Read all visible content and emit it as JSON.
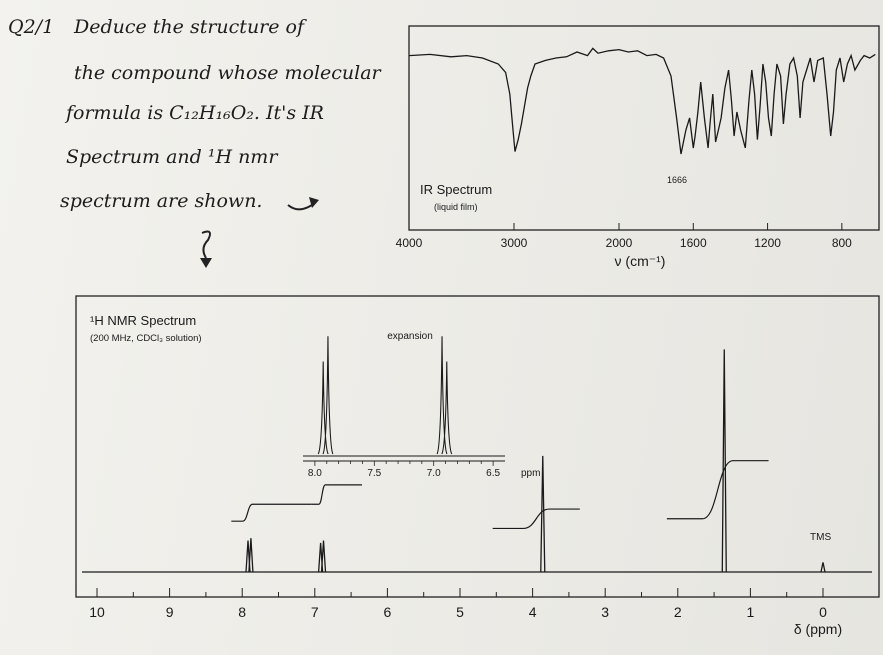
{
  "question": {
    "number": "Q2/1",
    "lines": [
      "Deduce the structure of",
      "the compound whose molecular",
      "formula is C₁₂H₁₆O₂. It's IR",
      "Spectrum and ¹H nmr",
      "spectrum are shown."
    ]
  },
  "chart_data": [
    {
      "type": "line",
      "title": "IR Spectrum",
      "subtitle": "(liquid film)",
      "xlabel": "ν (cm⁻¹)",
      "ylabel": "",
      "xlim": [
        4000,
        600
      ],
      "ylim": [
        0,
        100
      ],
      "x_ticks": [
        4000,
        3000,
        2000,
        1600,
        1200,
        800
      ],
      "annotations": [
        {
          "text": "1666",
          "x": 1666
        }
      ],
      "series": [
        {
          "x": [
            4000,
            3800,
            3600,
            3450,
            3300,
            3150,
            3080,
            3040,
            3010,
            2990,
            2960,
            2930,
            2900,
            2870,
            2840,
            2800,
            2700,
            2600,
            2500,
            2400,
            2300,
            2250,
            2200,
            2100,
            2000,
            1950,
            1900,
            1850,
            1800,
            1760,
            1720,
            1690,
            1666,
            1640,
            1620,
            1600,
            1590,
            1575,
            1560,
            1540,
            1520,
            1510,
            1495,
            1480,
            1465,
            1450,
            1430,
            1410,
            1395,
            1380,
            1365,
            1345,
            1320,
            1300,
            1285,
            1270,
            1255,
            1240,
            1225,
            1210,
            1195,
            1180,
            1165,
            1150,
            1130,
            1115,
            1100,
            1080,
            1060,
            1040,
            1025,
            1010,
            990,
            970,
            950,
            930,
            900,
            880,
            860,
            845,
            830,
            810,
            790,
            770,
            750,
            730,
            700,
            680,
            650,
            620
          ],
          "y": [
            92,
            93,
            91,
            92,
            90,
            85,
            78,
            60,
            30,
            12,
            22,
            35,
            50,
            65,
            75,
            85,
            88,
            90,
            91,
            95,
            92,
            98,
            94,
            96,
            97,
            95,
            96,
            92,
            93,
            90,
            75,
            40,
            10,
            30,
            40,
            15,
            25,
            45,
            70,
            40,
            15,
            35,
            60,
            20,
            30,
            40,
            65,
            80,
            55,
            25,
            45,
            30,
            15,
            55,
            80,
            60,
            22,
            50,
            85,
            70,
            40,
            25,
            60,
            85,
            75,
            35,
            60,
            85,
            90,
            75,
            40,
            70,
            80,
            90,
            70,
            88,
            90,
            60,
            25,
            45,
            80,
            90,
            70,
            85,
            92,
            80,
            88,
            92,
            90,
            93
          ]
        }
      ]
    },
    {
      "type": "line",
      "title": "¹H NMR Spectrum",
      "subtitle": "(200 MHz, CDCl₃ solution)",
      "xlabel": "δ (ppm)",
      "ylabel": "",
      "xlim": [
        10,
        -0.3
      ],
      "ylim": [
        0,
        100
      ],
      "x_ticks": [
        10,
        9,
        8,
        7,
        6,
        5,
        4,
        3,
        2,
        1,
        0
      ],
      "annotations": [
        {
          "text": "TMS",
          "x": 0
        }
      ],
      "peaks": [
        {
          "shift": 7.92,
          "height": 13
        },
        {
          "shift": 7.88,
          "height": 14
        },
        {
          "shift": 6.92,
          "height": 12
        },
        {
          "shift": 6.88,
          "height": 13
        },
        {
          "shift": 3.86,
          "height": 48
        },
        {
          "shift": 1.36,
          "height": 92
        },
        {
          "shift": 0.0,
          "height": 4
        }
      ],
      "integral_levels": [
        {
          "from": 8.15,
          "to": 7.7,
          "y0": 21,
          "y1": 28
        },
        {
          "from": 7.7,
          "to": 7.05,
          "y0": 28,
          "y1": 28
        },
        {
          "from": 7.05,
          "to": 6.75,
          "y0": 28,
          "y1": 36
        },
        {
          "from": 6.75,
          "to": 6.35,
          "y0": 36,
          "y1": 36
        },
        {
          "from": 4.55,
          "to": 3.35,
          "y0": 18,
          "y1": 26
        },
        {
          "from": 2.15,
          "to": 0.75,
          "y0": 22,
          "y1": 46
        }
      ],
      "expansion": {
        "label": "expansion",
        "xlabel": "ppm",
        "xlim": [
          8.1,
          6.4
        ],
        "x_ticks": [
          8.0,
          7.5,
          7.0,
          6.5
        ],
        "peaks": [
          {
            "shift": 7.93,
            "height": 75
          },
          {
            "shift": 7.89,
            "height": 95
          },
          {
            "shift": 6.93,
            "height": 95
          },
          {
            "shift": 6.89,
            "height": 75
          }
        ]
      }
    }
  ]
}
